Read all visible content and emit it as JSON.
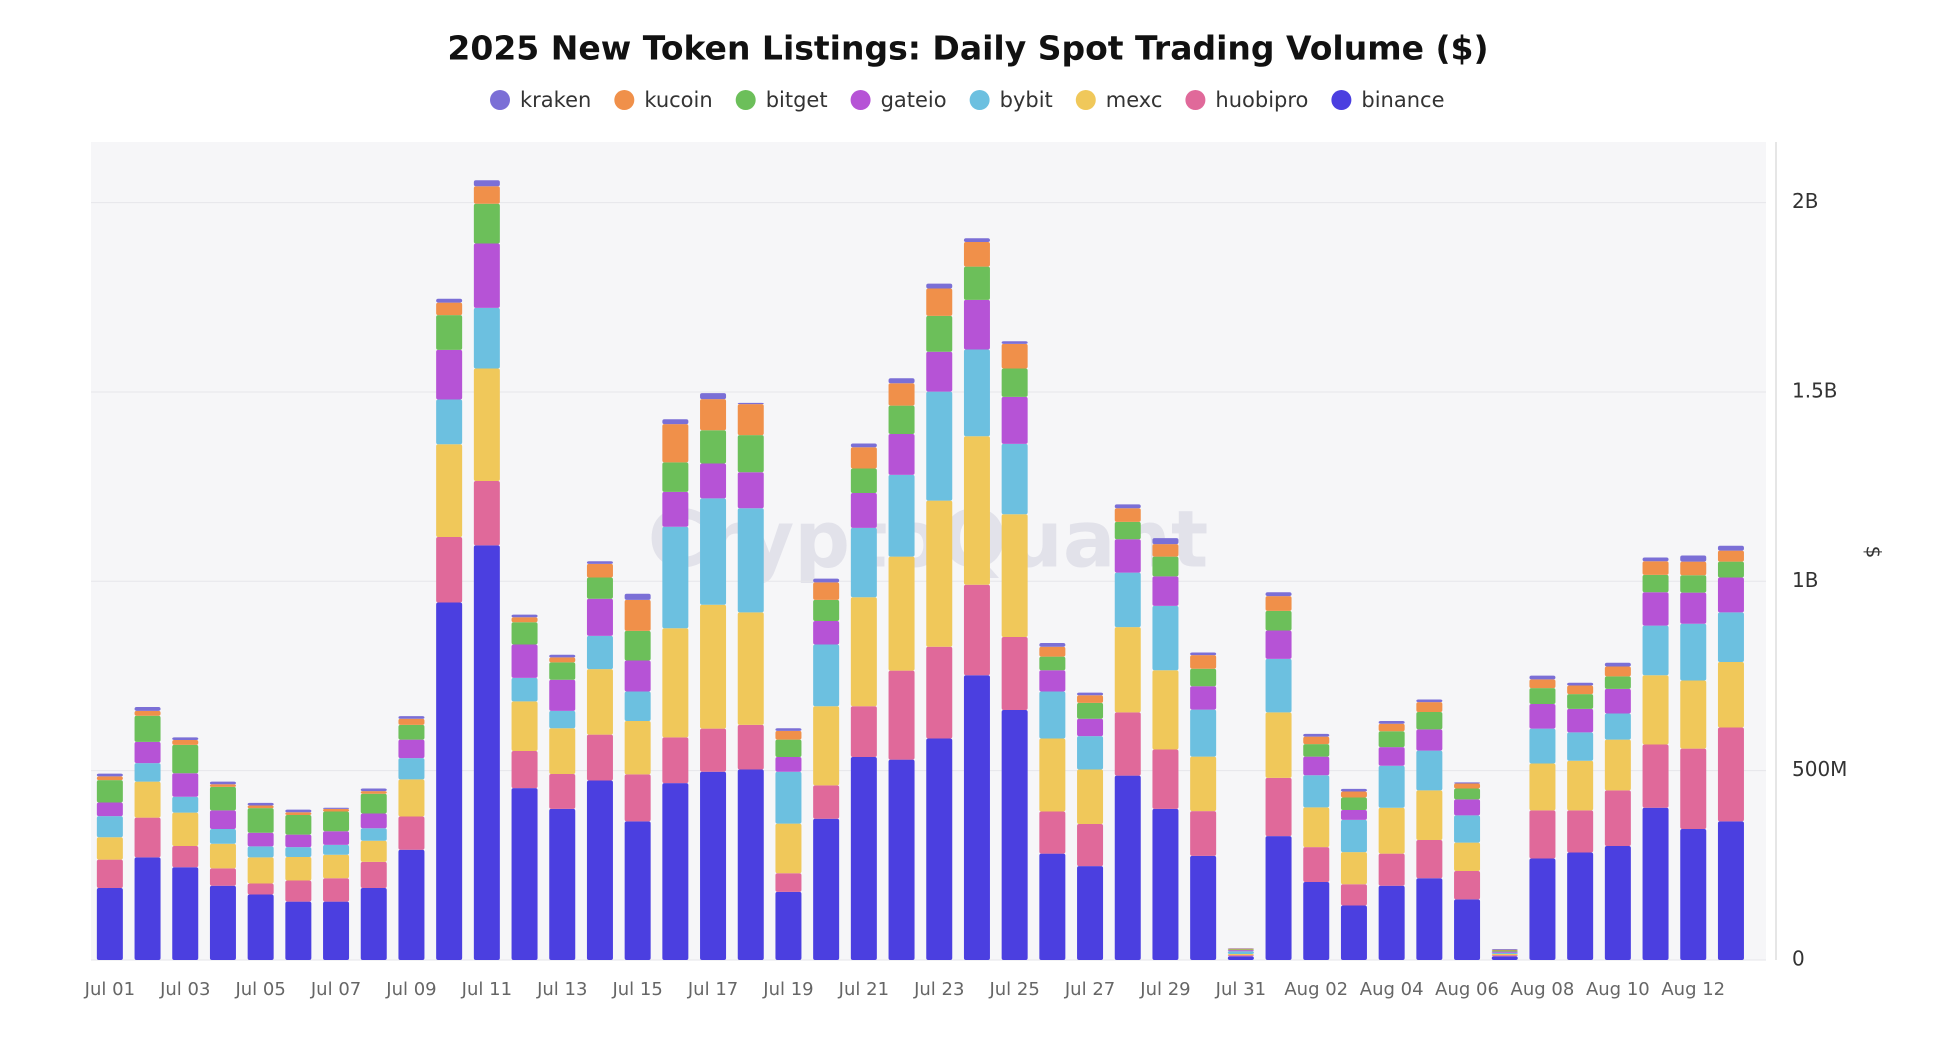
{
  "chart_data": {
    "type": "stacked_bar",
    "title": "2025 New Token Listings: Daily Spot Trading Volume ($)",
    "watermark": "CryptoQuant",
    "y_label": "$",
    "categories": [
      "Jul 01",
      null,
      "Jul 03",
      null,
      "Jul 05",
      null,
      "Jul 07",
      null,
      "Jul 09",
      null,
      "Jul 11",
      null,
      "Jul 13",
      null,
      "Jul 15",
      null,
      "Jul 17",
      null,
      "Jul 19",
      null,
      "Jul 21",
      null,
      "Jul 23",
      null,
      "Jul 25",
      null,
      "Jul 27",
      null,
      "Jul 29",
      null,
      "Jul 31",
      null,
      "Aug 02",
      null,
      "Aug 04",
      null,
      "Aug 06",
      null,
      "Aug 08",
      null,
      "Aug 10",
      null,
      "Aug 12",
      null
    ],
    "series": [
      {
        "name": "kraken",
        "color": "#7b6fd6",
        "values": [
          7000000.0,
          10000000.0,
          7000000.0,
          7000000.0,
          7000000.0,
          7000000.0,
          3000000.0,
          7000000.0,
          7000000.0,
          10000000.0,
          16000000.0,
          7000000.0,
          7000000.0,
          7000000.0,
          16000000.0,
          13000000.0,
          16000000.0,
          3000000.0,
          7000000.0,
          10000000.0,
          10000000.0,
          13000000.0,
          13000000.0,
          10000000.0,
          7000000.0,
          10000000.0,
          7000000.0,
          10000000.0,
          16000000.0,
          7000000.0,
          1000000.0,
          10000000.0,
          7000000.0,
          7000000.0,
          7000000.0,
          7000000.0,
          3000000.0,
          2000000.0,
          10000000.0,
          7000000.0,
          10000000.0,
          10000000.0,
          16000000.0,
          13000000.0
        ]
      },
      {
        "name": "kucoin",
        "color": "#f0904a",
        "values": [
          10000000.0,
          13000000.0,
          13000000.0,
          7000000.0,
          7000000.0,
          7000000.0,
          7000000.0,
          7000000.0,
          16000000.0,
          33000000.0,
          46000000.0,
          13000000.0,
          13000000.0,
          36000000.0,
          82000000.0,
          101000000.0,
          82000000.0,
          82000000.0,
          23000000.0,
          46000000.0,
          56000000.0,
          59000000.0,
          72000000.0,
          65000000.0,
          65000000.0,
          26000000.0,
          20000000.0,
          36000000.0,
          33000000.0,
          36000000.0,
          2000000.0,
          39000000.0,
          20000000.0,
          16000000.0,
          20000000.0,
          26000000.0,
          13000000.0,
          2000000.0,
          23000000.0,
          23000000.0,
          26000000.0,
          36000000.0,
          36000000.0,
          29000000.0
        ]
      },
      {
        "name": "bitget",
        "color": "#6cbf5a",
        "values": [
          59000000.0,
          69000000.0,
          75000000.0,
          62000000.0,
          65000000.0,
          52000000.0,
          52000000.0,
          52000000.0,
          39000000.0,
          92000000.0,
          105000000.0,
          59000000.0,
          46000000.0,
          56000000.0,
          78000000.0,
          78000000.0,
          88000000.0,
          98000000.0,
          46000000.0,
          56000000.0,
          65000000.0,
          75000000.0,
          95000000.0,
          88000000.0,
          75000000.0,
          36000000.0,
          42000000.0,
          46000000.0,
          52000000.0,
          46000000.0,
          2000000.0,
          52000000.0,
          33000000.0,
          33000000.0,
          42000000.0,
          46000000.0,
          29000000.0,
          3000000.0,
          42000000.0,
          39000000.0,
          33000000.0,
          46000000.0,
          46000000.0,
          42000000.0
        ]
      },
      {
        "name": "gateio",
        "color": "#b653d6",
        "values": [
          36000000.0,
          56000000.0,
          62000000.0,
          49000000.0,
          36000000.0,
          33000000.0,
          36000000.0,
          39000000.0,
          49000000.0,
          131000000.0,
          170000000.0,
          88000000.0,
          82000000.0,
          98000000.0,
          82000000.0,
          92000000.0,
          92000000.0,
          95000000.0,
          39000000.0,
          62000000.0,
          92000000.0,
          108000000.0,
          105000000.0,
          131000000.0,
          124000000.0,
          56000000.0,
          46000000.0,
          88000000.0,
          78000000.0,
          62000000.0,
          3000000.0,
          75000000.0,
          49000000.0,
          26000000.0,
          49000000.0,
          56000000.0,
          42000000.0,
          3000000.0,
          65000000.0,
          62000000.0,
          65000000.0,
          88000000.0,
          82000000.0,
          92000000.0
        ]
      },
      {
        "name": "bybit",
        "color": "#6cc0e0",
        "values": [
          56000000.0,
          49000000.0,
          42000000.0,
          39000000.0,
          29000000.0,
          26000000.0,
          26000000.0,
          33000000.0,
          56000000.0,
          118000000.0,
          160000000.0,
          62000000.0,
          46000000.0,
          88000000.0,
          78000000.0,
          268000000.0,
          281000000.0,
          275000000.0,
          137000000.0,
          163000000.0,
          183000000.0,
          216000000.0,
          288000000.0,
          229000000.0,
          186000000.0,
          124000000.0,
          88000000.0,
          144000000.0,
          170000000.0,
          124000000.0,
          7000000.0,
          141000000.0,
          85000000.0,
          85000000.0,
          111000000.0,
          105000000.0,
          72000000.0,
          3000000.0,
          92000000.0,
          75000000.0,
          69000000.0,
          131000000.0,
          150000000.0,
          131000000.0
        ]
      },
      {
        "name": "mexc",
        "color": "#f0c85a",
        "values": [
          59000000.0,
          95000000.0,
          88000000.0,
          65000000.0,
          69000000.0,
          62000000.0,
          62000000.0,
          56000000.0,
          98000000.0,
          245000000.0,
          297000000.0,
          131000000.0,
          121000000.0,
          173000000.0,
          141000000.0,
          288000000.0,
          327000000.0,
          297000000.0,
          131000000.0,
          209000000.0,
          288000000.0,
          301000000.0,
          386000000.0,
          392000000.0,
          324000000.0,
          193000000.0,
          144000000.0,
          225000000.0,
          209000000.0,
          144000000.0,
          3000000.0,
          173000000.0,
          105000000.0,
          85000000.0,
          121000000.0,
          131000000.0,
          75000000.0,
          3000000.0,
          124000000.0,
          131000000.0,
          134000000.0,
          183000000.0,
          180000000.0,
          173000000.0
        ]
      },
      {
        "name": "huobipro",
        "color": "#e0699a",
        "values": [
          75000000.0,
          105000000.0,
          56000000.0,
          46000000.0,
          29000000.0,
          56000000.0,
          62000000.0,
          69000000.0,
          88000000.0,
          173000000.0,
          170000000.0,
          98000000.0,
          92000000.0,
          121000000.0,
          124000000.0,
          121000000.0,
          114000000.0,
          118000000.0,
          49000000.0,
          88000000.0,
          134000000.0,
          235000000.0,
          242000000.0,
          239000000.0,
          193000000.0,
          111000000.0,
          111000000.0,
          167000000.0,
          157000000.0,
          118000000.0,
          3000000.0,
          154000000.0,
          92000000.0,
          56000000.0,
          85000000.0,
          101000000.0,
          75000000.0,
          3000000.0,
          127000000.0,
          111000000.0,
          147000000.0,
          167000000.0,
          212000000.0,
          248000000.0
        ]
      },
      {
        "name": "binance",
        "color": "#4b3fe0",
        "values": [
          190000000.0,
          271000000.0,
          245000000.0,
          196000000.0,
          173000000.0,
          154000000.0,
          154000000.0,
          190000000.0,
          291000000.0,
          944000000.0,
          1095000000.0,
          454000000.0,
          399000000.0,
          474000000.0,
          366000000.0,
          467000000.0,
          497000000.0,
          503000000.0,
          180000000.0,
          373000000.0,
          536000000.0,
          529000000.0,
          585000000.0,
          752000000.0,
          660000000.0,
          281000000.0,
          248000000.0,
          487000000.0,
          399000000.0,
          275000000.0,
          10000000.0,
          327000000.0,
          206000000.0,
          144000000.0,
          196000000.0,
          216000000.0,
          160000000.0,
          10000000.0,
          268000000.0,
          284000000.0,
          301000000.0,
          402000000.0,
          346000000.0,
          366000000.0
        ]
      }
    ],
    "ylim": [
      0,
      2160000000.0
    ],
    "yticks": [
      0,
      {
        "value": 500000000.0,
        "label": "500M"
      },
      {
        "value": 1000000000.0,
        "label": "1B"
      },
      {
        "value": 1500000000.0,
        "label": "1.5B"
      },
      {
        "value": 2000000000.0,
        "label": "2B"
      }
    ],
    "grid": true,
    "legend_position": "top"
  }
}
